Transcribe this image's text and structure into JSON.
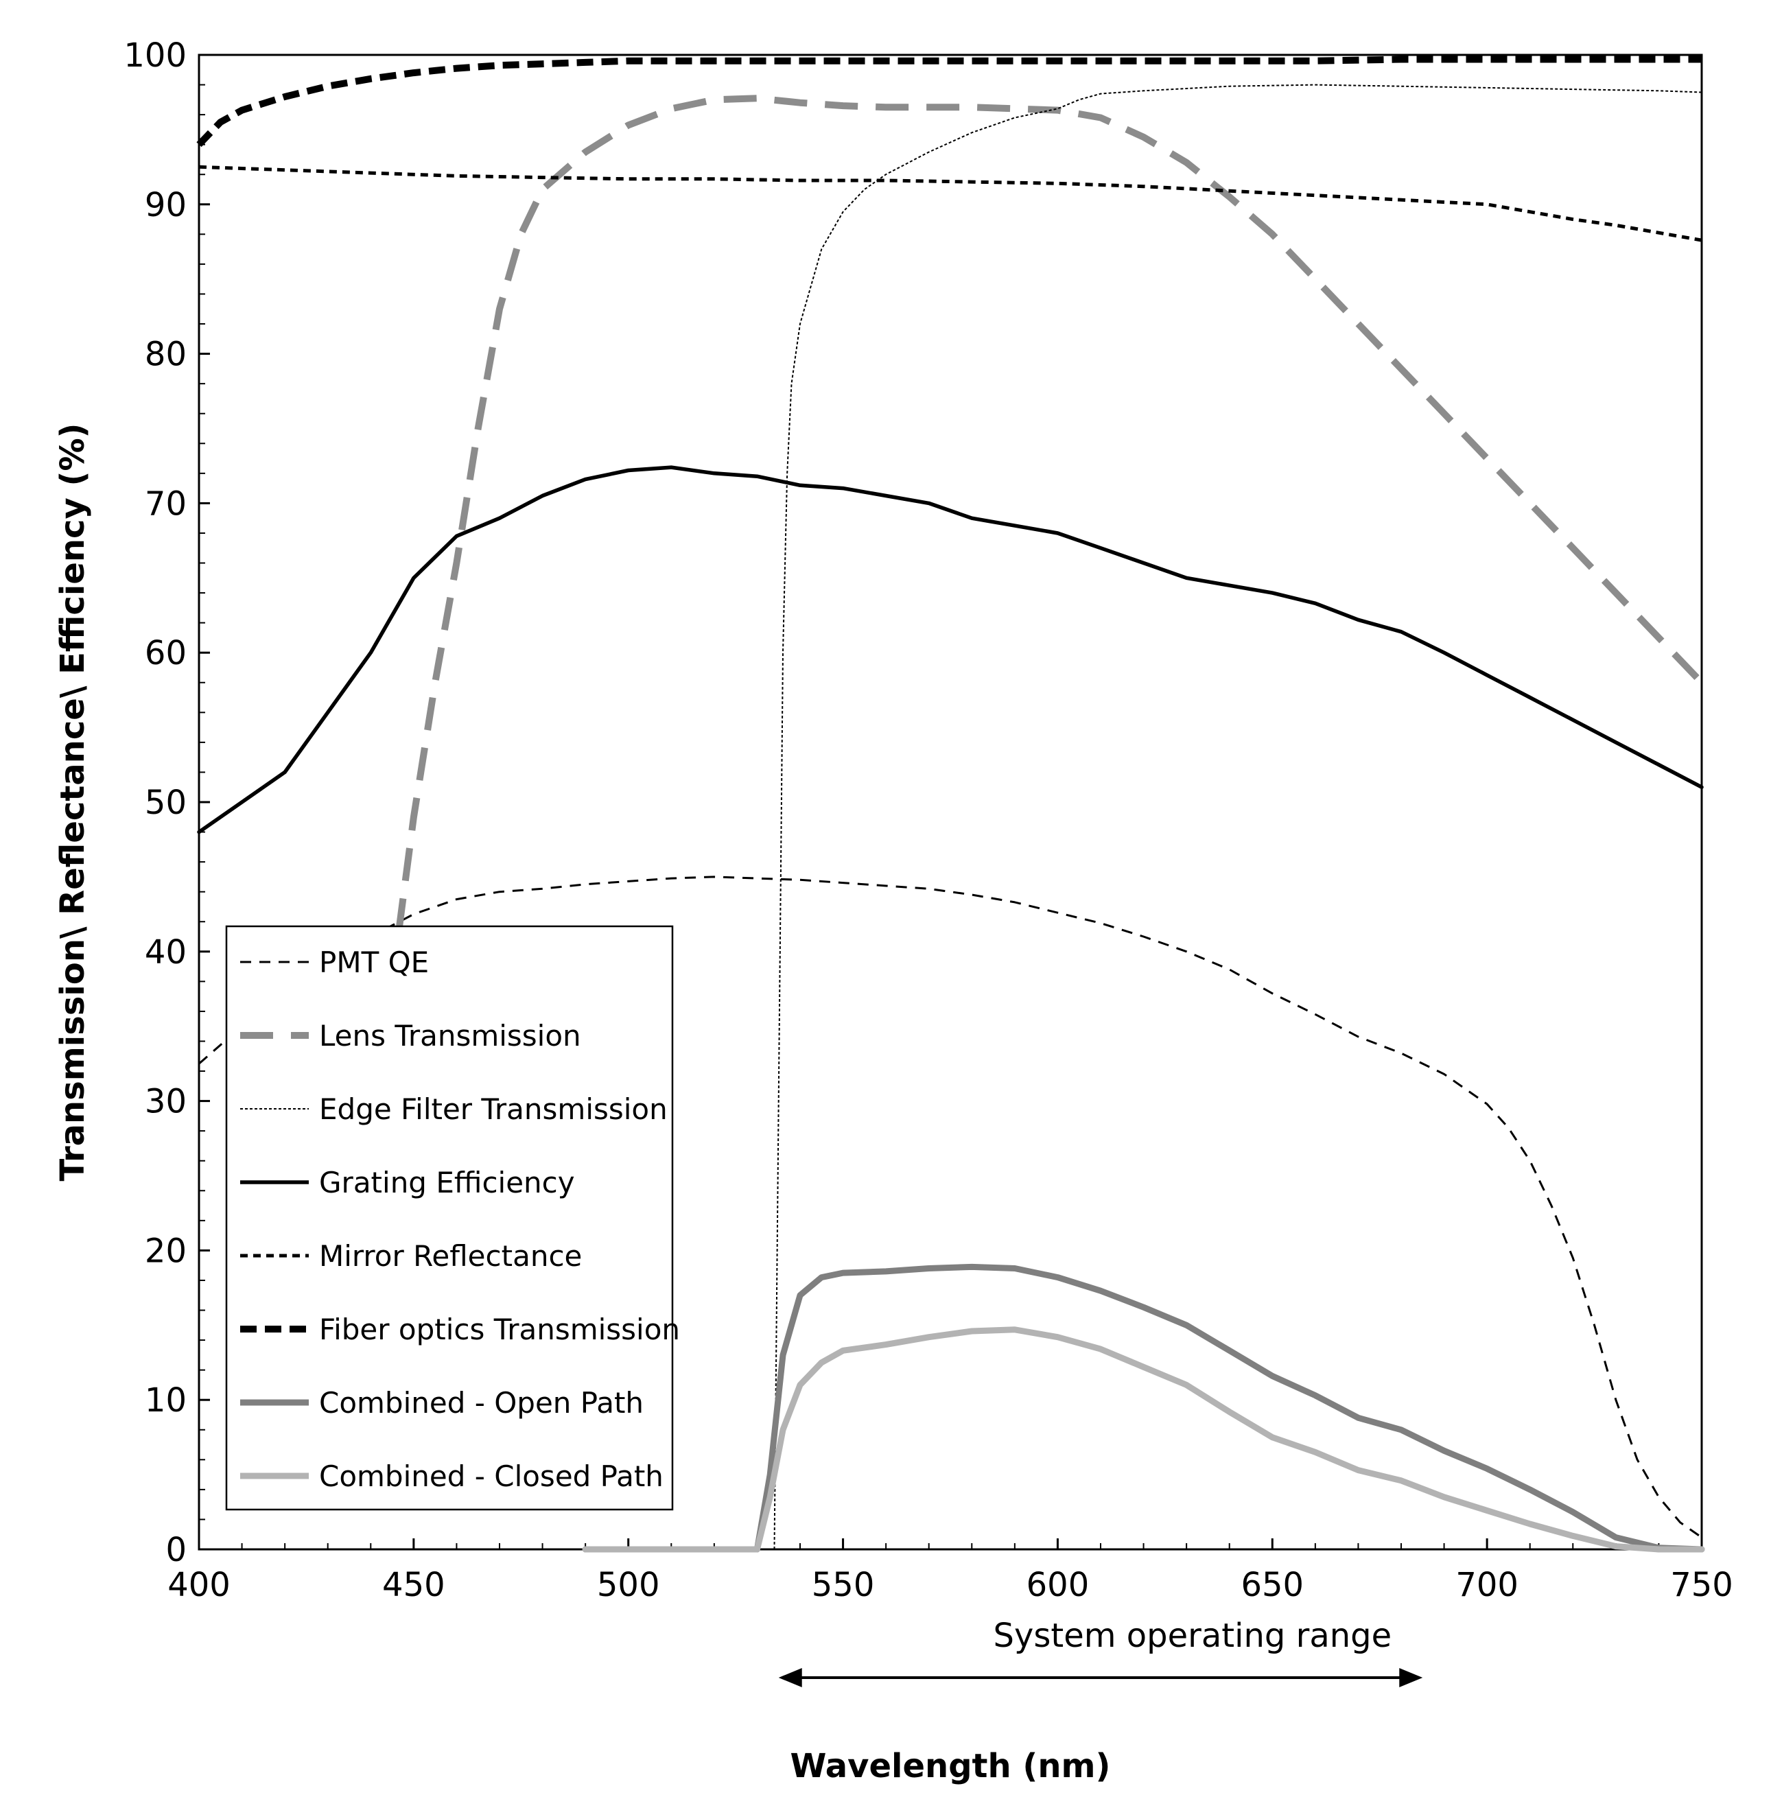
{
  "chart_data": {
    "type": "line",
    "title": "",
    "xlabel": "Wavelength (nm)",
    "ylabel": "Transmission\\ Reflectance\\ Efficiency (%)",
    "xlim": [
      400,
      750
    ],
    "ylim": [
      0,
      100
    ],
    "xticks": [
      400,
      450,
      500,
      550,
      600,
      650,
      700,
      750
    ],
    "yticks": [
      0,
      10,
      20,
      30,
      40,
      50,
      60,
      70,
      80,
      90,
      100
    ],
    "grid": false,
    "legend_position": "bottom-left",
    "annotation": {
      "text": "System operating range",
      "range": [
        535,
        685
      ]
    },
    "series": [
      {
        "name": "PMT QE",
        "color": "#000000",
        "style": "thin-dash",
        "x": [
          400,
          410,
          420,
          430,
          440,
          450,
          460,
          470,
          480,
          490,
          500,
          510,
          520,
          530,
          540,
          550,
          560,
          570,
          580,
          590,
          600,
          610,
          620,
          630,
          640,
          650,
          660,
          670,
          680,
          690,
          700,
          705,
          710,
          715,
          720,
          725,
          730,
          735,
          740,
          745,
          750
        ],
        "y": [
          32.5,
          35,
          37.5,
          39.5,
          41,
          42.5,
          43.5,
          44,
          44.2,
          44.5,
          44.7,
          44.9,
          45,
          44.9,
          44.8,
          44.6,
          44.4,
          44.2,
          43.8,
          43.3,
          42.6,
          41.9,
          41,
          40,
          38.8,
          37.2,
          35.8,
          34.3,
          33.2,
          31.8,
          29.8,
          28.2,
          26,
          23,
          19.5,
          15,
          10,
          6,
          3.5,
          1.8,
          0.8
        ]
      },
      {
        "name": "Lens Transmission",
        "color": "#8c8c8c",
        "style": "long-dash",
        "x": [
          445,
          450,
          455,
          460,
          465,
          470,
          475,
          480,
          490,
          500,
          510,
          520,
          530,
          540,
          550,
          560,
          570,
          580,
          590,
          600,
          610,
          620,
          630,
          640,
          650,
          660,
          670,
          680,
          690,
          700,
          710,
          720,
          730,
          740,
          750
        ],
        "y": [
          38,
          49,
          58,
          66,
          75,
          83,
          88,
          91,
          93.5,
          95.3,
          96.4,
          97,
          97.1,
          96.8,
          96.6,
          96.5,
          96.5,
          96.5,
          96.4,
          96.3,
          95.8,
          94.5,
          92.8,
          90.5,
          88,
          85,
          82,
          79,
          76,
          73,
          70,
          67,
          64,
          61,
          58
        ]
      },
      {
        "name": "Edge Filter Transmission",
        "color": "#000000",
        "style": "dotted",
        "x": [
          534,
          535,
          536,
          537,
          538,
          540,
          542,
          545,
          550,
          555,
          560,
          570,
          580,
          590,
          600,
          605,
          610,
          620,
          640,
          660,
          680,
          700,
          720,
          740,
          750
        ],
        "y": [
          0,
          30,
          60,
          72,
          78,
          82,
          84,
          87,
          89.5,
          91,
          92,
          93.5,
          94.8,
          95.8,
          96.4,
          97,
          97.4,
          97.6,
          97.9,
          98,
          97.9,
          97.8,
          97.7,
          97.6,
          97.5
        ]
      },
      {
        "name": "Grating Efficiency",
        "color": "#000000",
        "style": "solid",
        "x": [
          400,
          410,
          420,
          430,
          440,
          450,
          460,
          470,
          480,
          490,
          500,
          510,
          520,
          530,
          540,
          550,
          560,
          570,
          580,
          590,
          600,
          610,
          620,
          630,
          640,
          650,
          660,
          670,
          680,
          690,
          700,
          710,
          720,
          730,
          740,
          750
        ],
        "y": [
          48,
          50,
          52,
          56,
          60,
          65,
          67.8,
          69,
          70.5,
          71.6,
          72.2,
          72.4,
          72,
          71.8,
          71.2,
          71,
          70.5,
          70,
          69,
          68.5,
          68,
          67,
          66,
          65,
          64.5,
          64,
          63.3,
          62.2,
          61.4,
          60,
          58.5,
          57,
          55.5,
          54,
          52.5,
          51
        ]
      },
      {
        "name": "Mirror Reflectance",
        "color": "#000000",
        "style": "short-dash",
        "x": [
          400,
          420,
          440,
          460,
          480,
          500,
          520,
          540,
          560,
          580,
          600,
          620,
          640,
          660,
          680,
          700,
          710,
          720,
          730,
          740,
          750
        ],
        "y": [
          92.5,
          92.3,
          92.1,
          91.9,
          91.8,
          91.7,
          91.7,
          91.6,
          91.6,
          91.5,
          91.4,
          91.2,
          90.9,
          90.6,
          90.3,
          90,
          89.5,
          89,
          88.6,
          88.1,
          87.6
        ]
      },
      {
        "name": "Fiber optics Transmission",
        "color": "#000000",
        "style": "thick-dash",
        "x": [
          400,
          405,
          410,
          420,
          430,
          440,
          450,
          460,
          470,
          480,
          490,
          500,
          520,
          540,
          560,
          580,
          600,
          620,
          640,
          660,
          680,
          700,
          720,
          740,
          750
        ],
        "y": [
          94,
          95.5,
          96.3,
          97.2,
          97.9,
          98.4,
          98.8,
          99.1,
          99.3,
          99.4,
          99.5,
          99.6,
          99.6,
          99.6,
          99.6,
          99.6,
          99.6,
          99.6,
          99.6,
          99.6,
          99.7,
          99.7,
          99.7,
          99.7,
          99.7
        ]
      },
      {
        "name": "Combined - Open Path",
        "color": "#7f7f7f",
        "style": "solid-thick",
        "x": [
          490,
          500,
          510,
          520,
          530,
          533,
          536,
          540,
          545,
          550,
          560,
          570,
          580,
          590,
          600,
          610,
          620,
          630,
          640,
          650,
          660,
          670,
          680,
          690,
          700,
          710,
          720,
          730,
          740,
          750
        ],
        "y": [
          0,
          0,
          0,
          0,
          0,
          5,
          13,
          17,
          18.2,
          18.5,
          18.6,
          18.8,
          18.9,
          18.8,
          18.2,
          17.3,
          16.2,
          15,
          13.3,
          11.6,
          10.3,
          8.8,
          8,
          6.6,
          5.4,
          4,
          2.5,
          0.8,
          0.1,
          0
        ]
      },
      {
        "name": "Combined - Closed Path",
        "color": "#b3b3b3",
        "style": "solid-thick",
        "x": [
          490,
          500,
          510,
          520,
          530,
          533,
          536,
          540,
          545,
          550,
          560,
          570,
          580,
          590,
          600,
          610,
          620,
          630,
          640,
          650,
          660,
          670,
          680,
          690,
          700,
          710,
          720,
          730,
          740,
          750
        ],
        "y": [
          0,
          0,
          0,
          0,
          0,
          3.5,
          8,
          11,
          12.5,
          13.3,
          13.7,
          14.2,
          14.6,
          14.7,
          14.2,
          13.4,
          12.2,
          11,
          9.2,
          7.5,
          6.5,
          5.3,
          4.6,
          3.5,
          2.6,
          1.7,
          0.9,
          0.2,
          0,
          0
        ]
      }
    ]
  }
}
